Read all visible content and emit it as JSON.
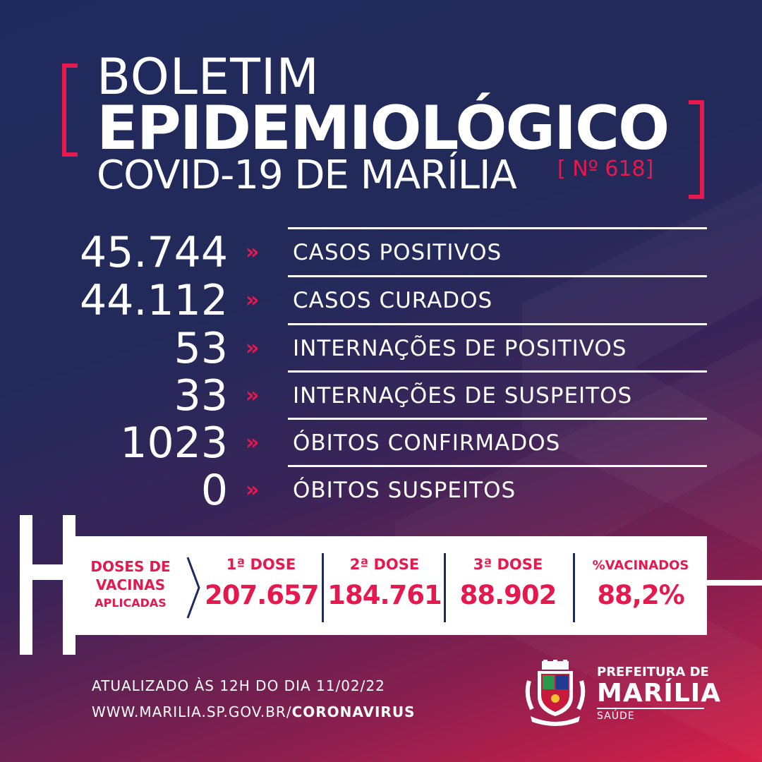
{
  "header": {
    "line1": "BOLETIM",
    "line2": "EPIDEMIOLÓGICO",
    "line3": "COVID-19 DE MARÍLIA",
    "bulletin_number": "[ Nº 618]"
  },
  "stats": [
    {
      "value": "45.744",
      "label": "CASOS POSITIVOS"
    },
    {
      "value": "44.112",
      "label": "CASOS CURADOS"
    },
    {
      "value": "53",
      "label": "INTERNAÇÕES DE POSITIVOS"
    },
    {
      "value": "33",
      "label": "INTERNAÇÕES DE SUSPEITOS"
    },
    {
      "value": "1023",
      "label": "ÓBITOS CONFIRMADOS"
    },
    {
      "value": "0",
      "label": "ÓBITOS SUSPEITOS"
    }
  ],
  "arrow_glyph": "»",
  "doses": {
    "title_line1": "DOSES DE",
    "title_line2": "VACINAS",
    "title_line3": "APLICADAS",
    "columns": [
      {
        "label": "1ª DOSE",
        "value": "207.657"
      },
      {
        "label": "2ª DOSE",
        "value": "184.761"
      },
      {
        "label": "3ª DOSE",
        "value": "88.902"
      },
      {
        "label": "%VACINADOS",
        "value": "88,2%"
      }
    ]
  },
  "footer": {
    "updated": "ATUALIZADO ÀS 12H DO DIA 11/02/22",
    "url_prefix": "WWW.MARILIA.SP.GOV.BR/",
    "url_bold": "CORONAVIRUS"
  },
  "logo": {
    "line1": "PREFEITURA DE",
    "line2": "MARÍLIA",
    "line3": "SAÚDE"
  },
  "colors": {
    "accent": "#e5194e",
    "navy": "#1f2a5c",
    "white": "#ffffff"
  }
}
